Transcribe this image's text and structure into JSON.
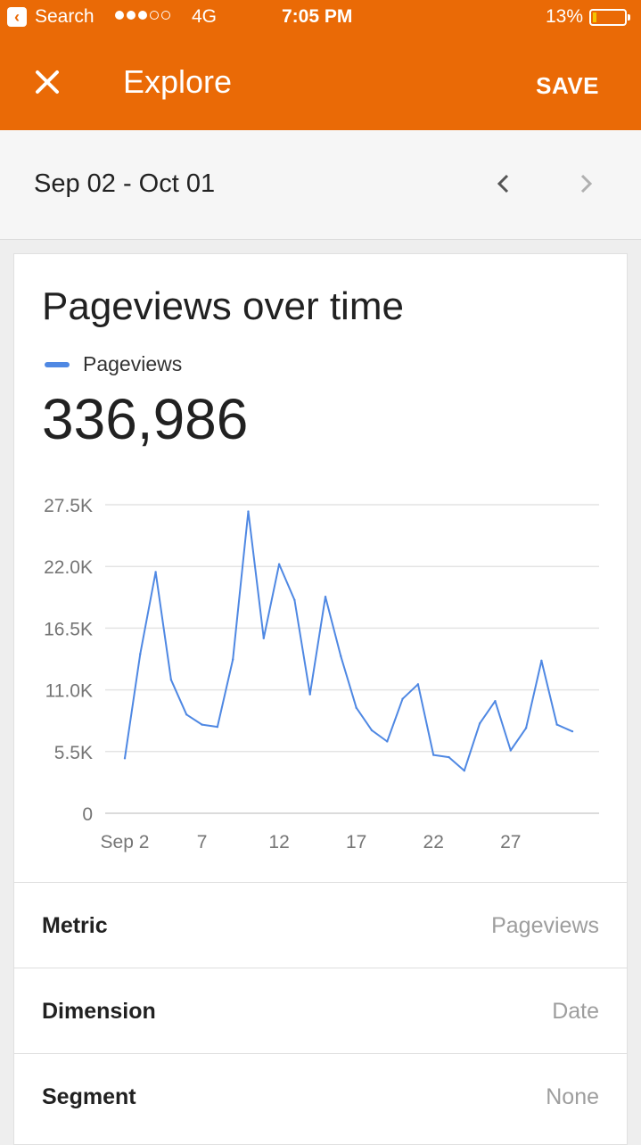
{
  "status_bar": {
    "back_label": "Search",
    "network": "4G",
    "time": "7:05 PM",
    "battery_percent": "13%",
    "battery_level": 0.13,
    "signal_bars_filled": 3,
    "signal_bars_total": 5
  },
  "header": {
    "close_icon": "close-icon",
    "title": "Explore",
    "save_label": "SAVE",
    "background": "#ea6a06"
  },
  "date_range": {
    "label": "Sep 02 - Oct 01",
    "prev_icon": "chevron-left-icon",
    "next_icon": "chevron-right-icon"
  },
  "card": {
    "title": "Pageviews over time",
    "legend_label": "Pageviews",
    "total": "336,986"
  },
  "chart_data": {
    "type": "line",
    "title": "Pageviews over time",
    "series": [
      {
        "name": "Pageviews",
        "color": "#4f88e3",
        "x": [
          2,
          3,
          4,
          5,
          6,
          7,
          8,
          9,
          10,
          11,
          12,
          13,
          14,
          15,
          16,
          17,
          18,
          19,
          20,
          21,
          22,
          23,
          24,
          25,
          26,
          27,
          28,
          29,
          30,
          31
        ],
        "values": [
          4900,
          14200,
          21500,
          11900,
          8800,
          7900,
          7700,
          13700,
          26900,
          15600,
          22200,
          19000,
          10600,
          19300,
          14000,
          9400,
          7400,
          6400,
          10200,
          11500,
          5200,
          5000,
          3800,
          8000,
          10000,
          5600,
          7600,
          13600,
          7900,
          7300
        ]
      }
    ],
    "ylim": [
      0,
      27500
    ],
    "yticks": [
      "0",
      "5.5K",
      "11.0K",
      "16.5K",
      "22.0K",
      "27.5K"
    ],
    "ytick_values": [
      0,
      5500,
      11000,
      16500,
      22000,
      27500
    ],
    "xticks": [
      "Sep 2",
      "7",
      "12",
      "17",
      "22",
      "27"
    ],
    "xtick_values": [
      2,
      7,
      12,
      17,
      22,
      27
    ],
    "xlim": [
      2,
      31
    ],
    "grid": true
  },
  "settings": [
    {
      "label": "Metric",
      "value": "Pageviews"
    },
    {
      "label": "Dimension",
      "value": "Date"
    },
    {
      "label": "Segment",
      "value": "None"
    }
  ]
}
